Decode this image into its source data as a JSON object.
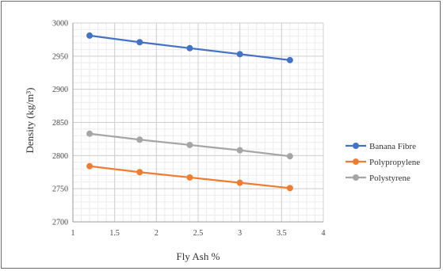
{
  "chart_data": {
    "type": "line",
    "xlabel": "Fly Ash %",
    "ylabel": "Density (kg/m³)",
    "xlim": [
      1,
      4
    ],
    "ylim": [
      2700,
      3000
    ],
    "x_ticks": [
      "1",
      "1.5",
      "2",
      "2.5",
      "3",
      "3.5",
      "4"
    ],
    "y_ticks": [
      "2700",
      "2750",
      "2800",
      "2850",
      "2900",
      "2950",
      "3000"
    ],
    "grid": true,
    "legend_position": "right",
    "x": [
      1.2,
      1.8,
      2.4,
      3.0,
      3.6
    ],
    "series": [
      {
        "name": "Banana Fibre",
        "color": "#4472C4",
        "values": [
          2981,
          2971,
          2962,
          2953,
          2944
        ]
      },
      {
        "name": "Polypropylene",
        "color": "#ED7D31",
        "values": [
          2784,
          2775,
          2767,
          2759,
          2751
        ]
      },
      {
        "name": "Polystyrene",
        "color": "#A5A5A5",
        "values": [
          2833,
          2824,
          2816,
          2808,
          2799
        ]
      }
    ]
  }
}
